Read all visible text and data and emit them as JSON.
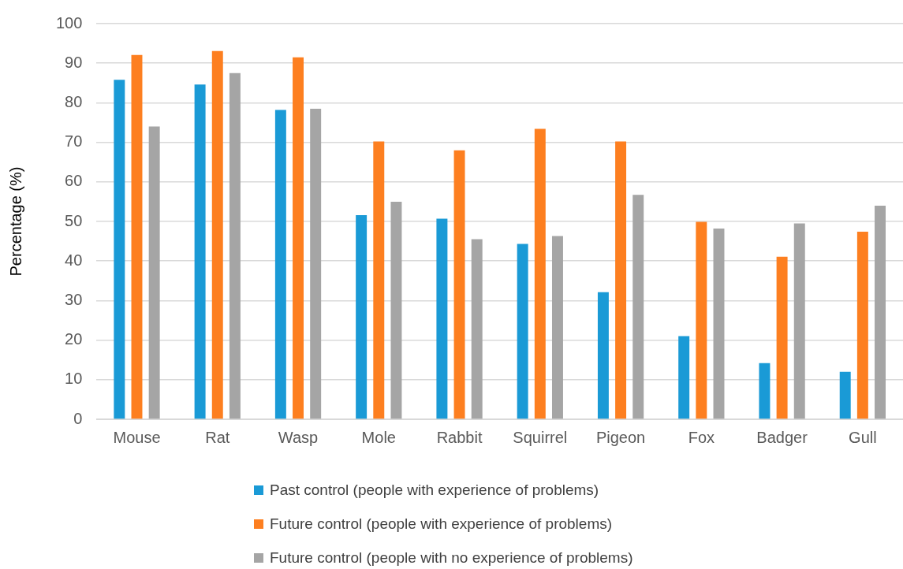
{
  "chart_data": {
    "type": "bar",
    "ylabel": "Percentage (%)",
    "categories": [
      "Mouse",
      "Rat",
      "Wasp",
      "Mole",
      "Rabbit",
      "Squirrel",
      "Pigeon",
      "Fox",
      "Badger",
      "Gull"
    ],
    "series": [
      {
        "name": "Past control (people with experience of problems)",
        "color": "#1a9ad6",
        "values": [
          85.8,
          84.6,
          78.2,
          51.6,
          50.7,
          44.3,
          32.1,
          21.0,
          14.2,
          12.0
        ]
      },
      {
        "name": "Future control (people with experience of problems)",
        "color": "#fd7f20",
        "values": [
          92.1,
          93.1,
          91.5,
          70.2,
          68.0,
          73.4,
          70.2,
          49.9,
          41.1,
          47.4
        ]
      },
      {
        "name": "Future control (people with no experience of problems)",
        "color": "#a5a5a5",
        "values": [
          74.0,
          87.5,
          78.5,
          55.0,
          45.5,
          46.3,
          56.7,
          48.2,
          49.5,
          54.0
        ]
      }
    ],
    "ylim": [
      0,
      100
    ],
    "yticks": [
      0,
      10,
      20,
      30,
      40,
      50,
      60,
      70,
      80,
      90,
      100
    ],
    "grid": "y",
    "legend": "bottom"
  }
}
